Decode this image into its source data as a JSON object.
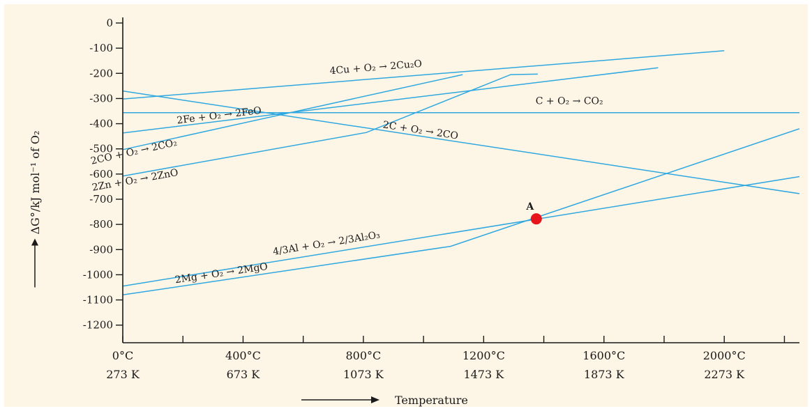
{
  "chart_data": {
    "type": "line",
    "title": "",
    "ylabel": "ΔG°/kJ mol⁻¹ of O₂",
    "xlabel": "Temperature",
    "xlim": [
      0,
      2250
    ],
    "ylim": [
      -1270,
      0
    ],
    "x_ticks": [
      {
        "value": 0,
        "celsius": "0°C",
        "kelvin": "273 K"
      },
      {
        "value": 400,
        "celsius": "400°C",
        "kelvin": "673 K"
      },
      {
        "value": 800,
        "celsius": "800°C",
        "kelvin": "1073 K"
      },
      {
        "value": 1200,
        "celsius": "1200°C",
        "kelvin": "1473 K"
      },
      {
        "value": 1600,
        "celsius": "1600°C",
        "kelvin": "1873 K"
      },
      {
        "value": 2000,
        "celsius": "2000°C",
        "kelvin": "2273 K"
      }
    ],
    "y_ticks": [
      0,
      -100,
      -200,
      -300,
      -400,
      -500,
      -600,
      -700,
      -800,
      -900,
      -1000,
      -1100,
      -1200
    ],
    "y_tick_labels": [
      "0",
      "-100",
      "-200",
      "-300",
      "-400",
      "-500",
      "-600",
      "-700",
      "-800",
      "-900",
      "-1000",
      "-1100",
      "-1200"
    ],
    "line_color": "#2fa8e0",
    "point_color": "#e8141b",
    "series": [
      {
        "name": "4Cu + O₂ → 2Cu₂O",
        "x": [
          0,
          2000
        ],
        "y": [
          -302,
          -110
        ]
      },
      {
        "name": "2Fe + O₂ → 2FeO",
        "x": [
          0,
          1780
        ],
        "y": [
          -437,
          -178
        ]
      },
      {
        "name": "C + O₂ → CO₂",
        "x": [
          0,
          2250
        ],
        "y": [
          -356,
          -356
        ]
      },
      {
        "name": "2CO + O₂ → 2CO₂",
        "x": [
          0,
          1130
        ],
        "y": [
          -503,
          -205
        ]
      },
      {
        "name": "2Zn + O₂ → 2ZnO",
        "x": [
          0,
          810,
          1290,
          1380
        ],
        "y": [
          -608,
          -435,
          -205,
          -203
        ]
      },
      {
        "name": "2C + O₂ → 2CO",
        "x": [
          0,
          2250
        ],
        "y": [
          -270,
          -678
        ]
      },
      {
        "name": "4/3Al + O₂ → 2/3Al₂O₃",
        "x": [
          0,
          2250
        ],
        "y": [
          -1045,
          -610
        ]
      },
      {
        "name": "2Mg + O₂ → 2MgO",
        "x": [
          0,
          1090,
          2250
        ],
        "y": [
          -1080,
          -887,
          -420
        ]
      }
    ],
    "annotations": [
      {
        "text": "A",
        "x": 1375,
        "y": -778
      }
    ]
  }
}
